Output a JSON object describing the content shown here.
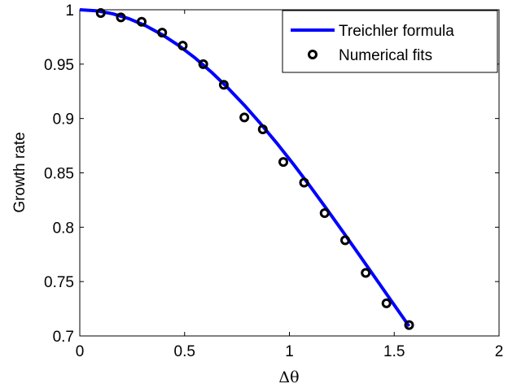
{
  "chart_data": {
    "type": "line",
    "title": "",
    "xlabel": "Δθ",
    "ylabel": "Growth rate",
    "xlim": [
      0,
      2
    ],
    "ylim": [
      0.7,
      1
    ],
    "xticks": [
      0,
      0.5,
      1,
      1.5,
      2
    ],
    "xtick_labels": [
      "0",
      "0.5",
      "1",
      "1.5",
      "2"
    ],
    "yticks": [
      0.7,
      0.75,
      0.8,
      0.85,
      0.9,
      0.95,
      1
    ],
    "ytick_labels": [
      "0.7",
      "0.75",
      "0.8",
      "0.85",
      "0.9",
      "0.95",
      "1"
    ],
    "grid": false,
    "legend_position": "top-right",
    "series": [
      {
        "name": "Treichler formula",
        "style": "line",
        "color": "#0000ff",
        "x": [
          0,
          0.0785,
          0.157,
          0.2356,
          0.3142,
          0.3927,
          0.4712,
          0.5498,
          0.6283,
          0.7069,
          0.7854,
          0.8639,
          0.9425,
          1.021,
          1.0996,
          1.1781,
          1.2566,
          1.3352,
          1.4137,
          1.4923,
          1.5708
        ],
        "y": [
          1.0,
          0.9991,
          0.9963,
          0.9917,
          0.9853,
          0.9771,
          0.9672,
          0.9557,
          0.9426,
          0.928,
          0.9121,
          0.8949,
          0.8767,
          0.8575,
          0.8374,
          0.8167,
          0.7955,
          0.774,
          0.7523,
          0.7306,
          0.709
        ]
      },
      {
        "name": "Numerical fits",
        "style": "markers",
        "marker": "circle",
        "color": "#000000",
        "x": [
          0.1,
          0.196,
          0.295,
          0.393,
          0.491,
          0.589,
          0.687,
          0.785,
          0.873,
          0.971,
          1.07,
          1.168,
          1.266,
          1.364,
          1.463,
          1.571
        ],
        "y": [
          0.997,
          0.993,
          0.989,
          0.979,
          0.967,
          0.95,
          0.931,
          0.901,
          0.89,
          0.86,
          0.841,
          0.813,
          0.788,
          0.758,
          0.73,
          0.71
        ]
      }
    ]
  }
}
